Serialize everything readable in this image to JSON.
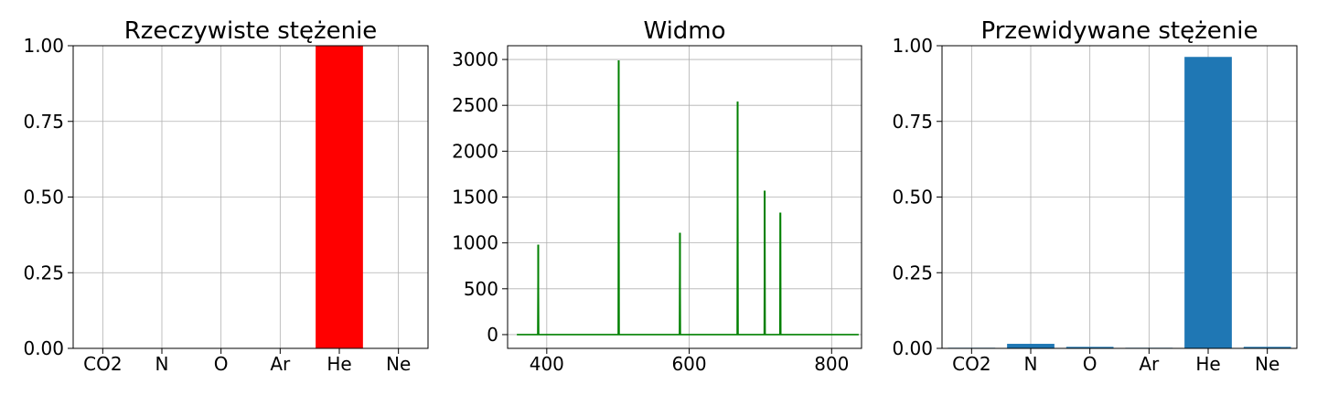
{
  "chart_data": [
    {
      "type": "bar",
      "title": "Rzeczywiste stężenie",
      "categories": [
        "CO2",
        "N",
        "O",
        "Ar",
        "He",
        "Ne"
      ],
      "values": [
        0,
        0,
        0,
        0,
        1.0,
        0
      ],
      "ylim": [
        0,
        1.0
      ],
      "yticks": [
        "0.00",
        "0.25",
        "0.50",
        "0.75",
        "1.00"
      ],
      "color": "#ff0000",
      "grid": true
    },
    {
      "type": "line",
      "title": "Widmo",
      "xlim": [
        345,
        842
      ],
      "ylim": [
        -150,
        3150
      ],
      "xticks": [
        "400",
        "600",
        "800"
      ],
      "yticks": [
        "0",
        "500",
        "1000",
        "1500",
        "2000",
        "2500",
        "3000"
      ],
      "color": "#008000",
      "grid": true,
      "baseline_range": [
        358,
        838
      ],
      "peaks": [
        {
          "x": 388,
          "y": 980
        },
        {
          "x": 501,
          "y": 2990
        },
        {
          "x": 587,
          "y": 1110
        },
        {
          "x": 668,
          "y": 2540
        },
        {
          "x": 706,
          "y": 1570
        },
        {
          "x": 728,
          "y": 1330
        }
      ]
    },
    {
      "type": "bar",
      "title": "Przewidywane stężenie",
      "categories": [
        "CO2",
        "N",
        "O",
        "Ar",
        "He",
        "Ne"
      ],
      "values": [
        0.002,
        0.015,
        0.005,
        0.002,
        0.963,
        0.005
      ],
      "ylim": [
        0,
        1.0
      ],
      "yticks": [
        "0.00",
        "0.25",
        "0.50",
        "0.75",
        "1.00"
      ],
      "color": "#1f77b4",
      "grid": true
    }
  ]
}
